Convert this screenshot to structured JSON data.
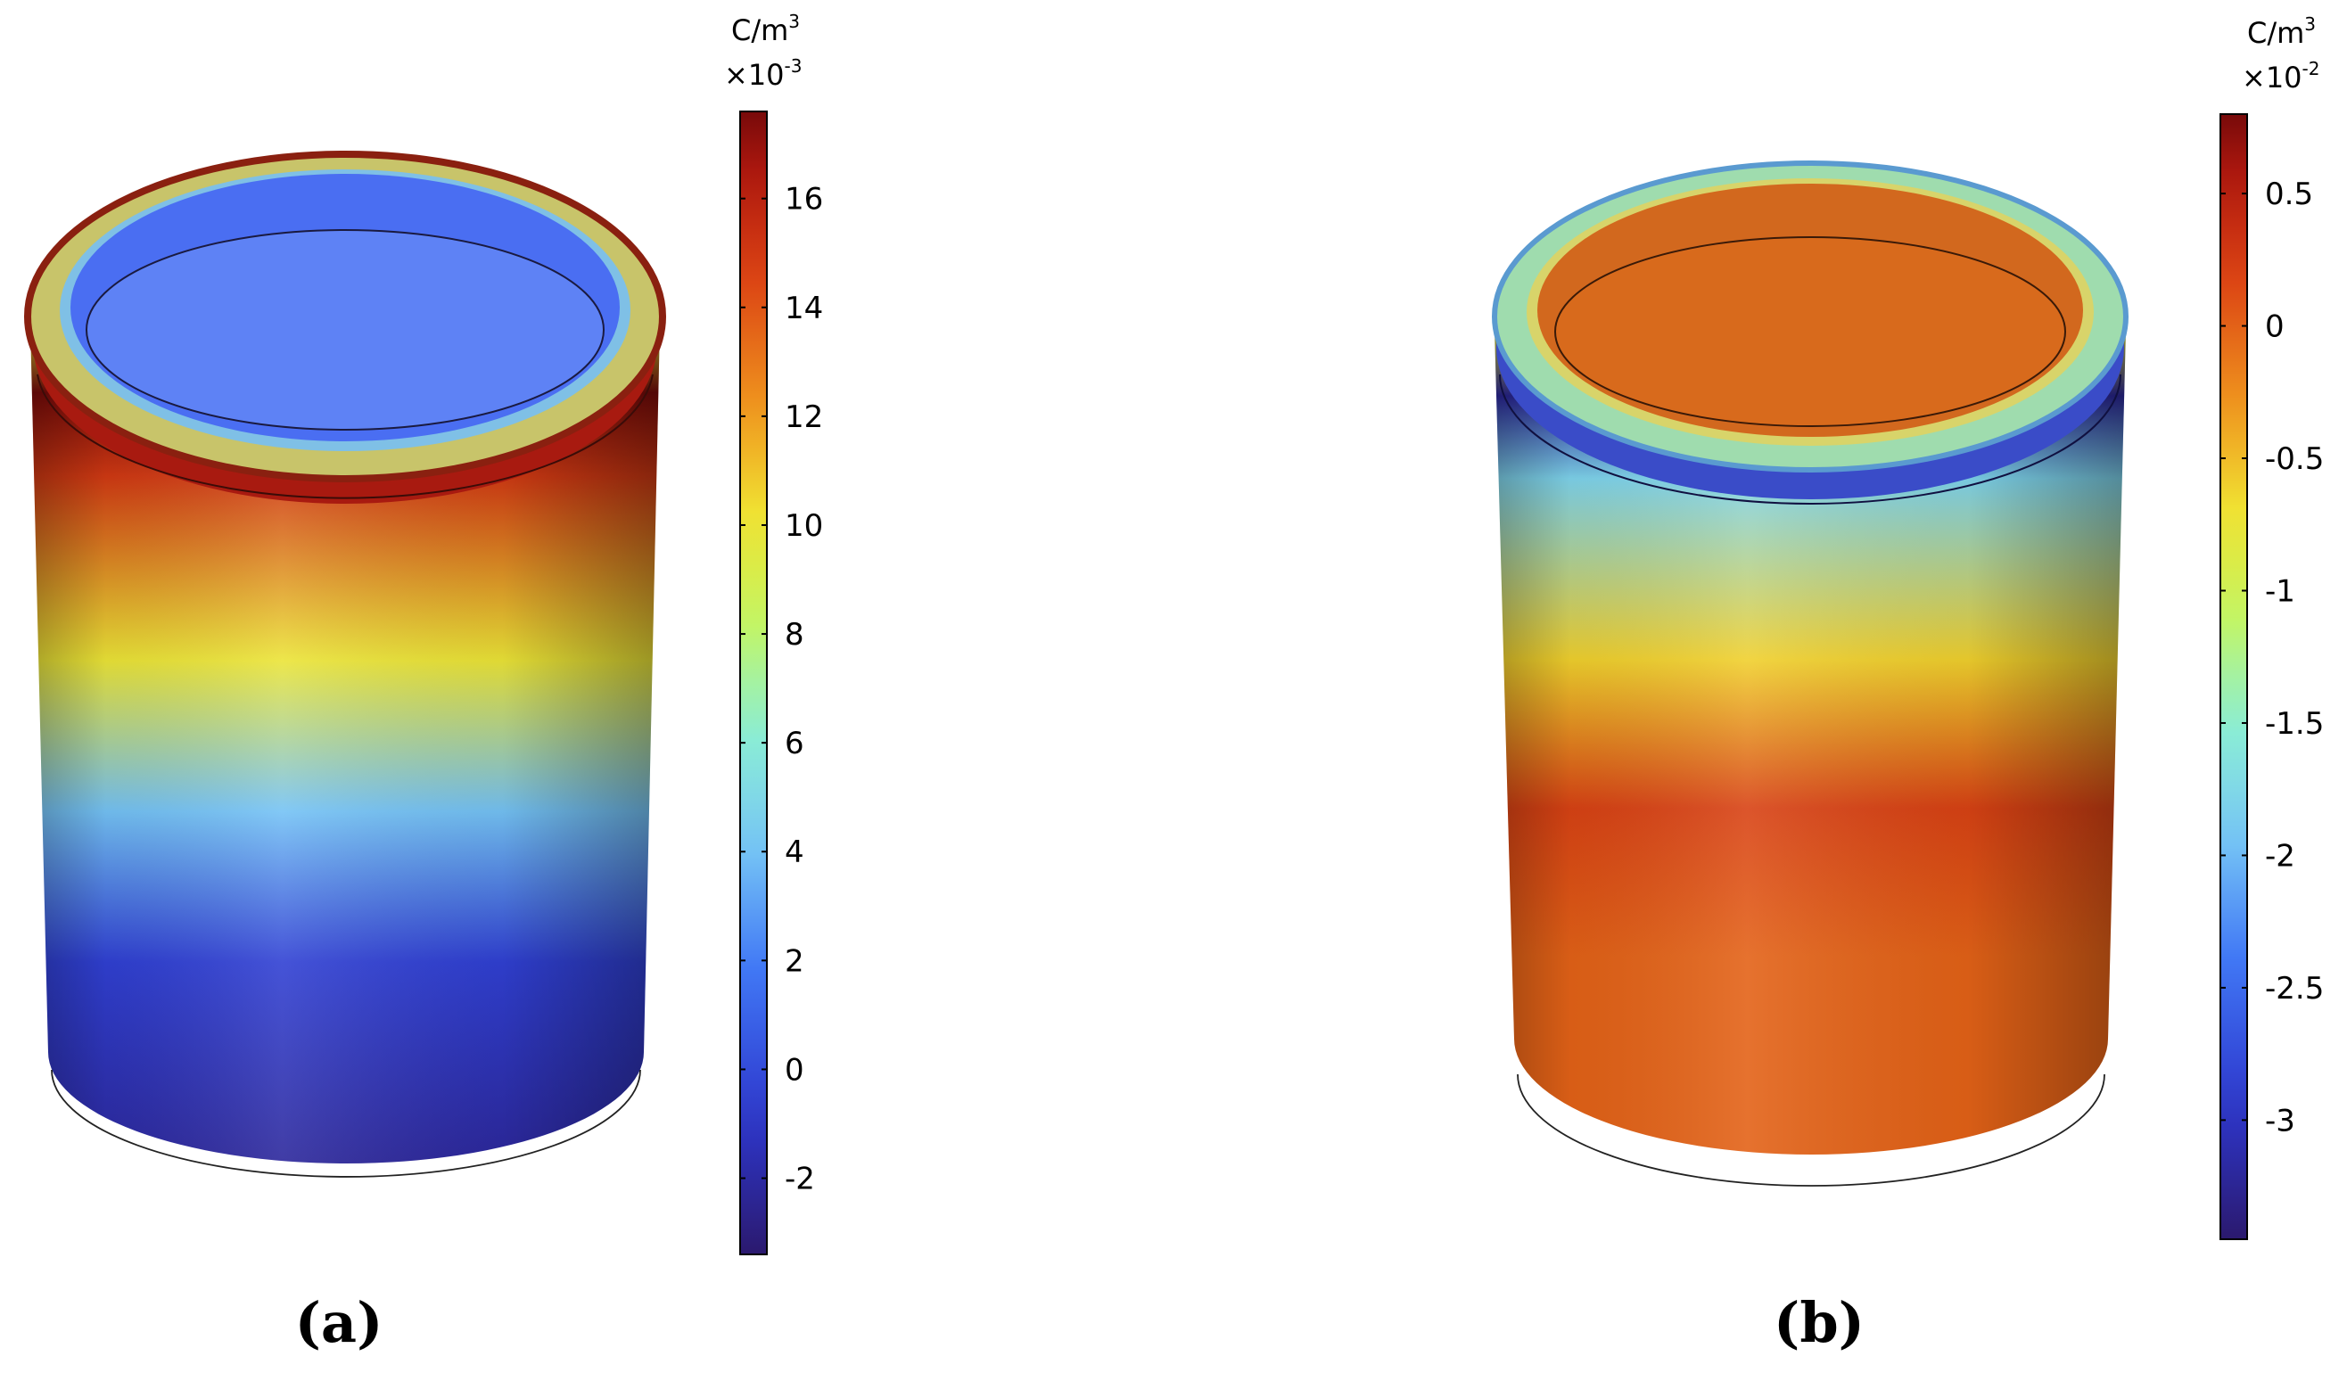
{
  "panels": [
    {
      "label": "(a)",
      "colorbar": {
        "unit": "C/m",
        "unit_power": "3",
        "multiplier_base": "×10",
        "multiplier_exp": "-3",
        "ticks": [
          "16",
          "14",
          "12",
          "10",
          "8",
          "6",
          "4",
          "2",
          "0",
          "-2"
        ],
        "tick_values": [
          16,
          14,
          12,
          10,
          8,
          6,
          4,
          2,
          0,
          -2
        ],
        "range": [
          -3.4,
          17.6
        ]
      },
      "surface_profile": [
        {
          "v": 10,
          "where": "top rim"
        },
        {
          "v": 17.5,
          "where": "upper band"
        },
        {
          "v": 15,
          "where": "upper body"
        },
        {
          "v": 10,
          "where": "middle"
        },
        {
          "v": 4,
          "where": "lower middle"
        },
        {
          "v": -0.5,
          "where": "lower body"
        },
        {
          "v": -2.2,
          "where": "bottom"
        }
      ]
    },
    {
      "label": "(b)",
      "colorbar": {
        "unit": "C/m",
        "unit_power": "3",
        "multiplier_base": "×10",
        "multiplier_exp": "-2",
        "ticks": [
          "0.5",
          "0",
          "-0.5",
          "-1",
          "-1.5",
          "-2",
          "-2.5",
          "-3"
        ],
        "tick_values": [
          0.5,
          0,
          -0.5,
          -1,
          -1.5,
          -2,
          -2.5,
          -3
        ],
        "range": [
          -3.45,
          0.8
        ]
      },
      "surface_profile": [
        {
          "v": -0.8,
          "where": "top rim"
        },
        {
          "v": -3.2,
          "where": "upper dark band"
        },
        {
          "v": -1.8,
          "where": "upper body"
        },
        {
          "v": -0.6,
          "where": "middle"
        },
        {
          "v": 0.2,
          "where": "lower middle"
        },
        {
          "v": 0.0,
          "where": "lower body"
        },
        {
          "v": 0.0,
          "where": "bottom"
        }
      ]
    }
  ]
}
